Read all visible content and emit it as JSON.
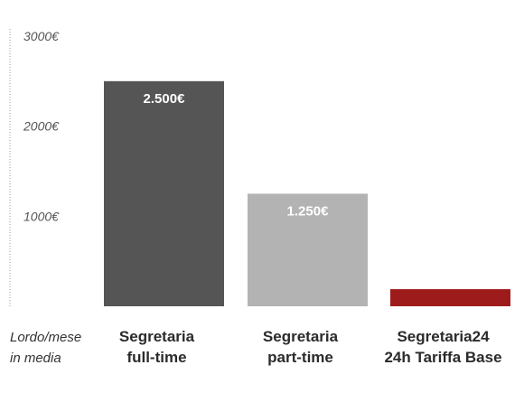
{
  "chart_data": {
    "type": "bar",
    "categories": [
      [
        "Segretaria",
        "full-time"
      ],
      [
        "Segretaria",
        "part-time"
      ],
      [
        "Segretaria24",
        "24h Tariffa Base"
      ]
    ],
    "values": [
      2500,
      1250,
      190
    ],
    "value_labels": [
      "2.500€",
      "1.250€",
      ""
    ],
    "colors": [
      "#555555",
      "#b3b3b3",
      "#9e1b1b"
    ],
    "ylim": [
      0,
      3000
    ],
    "yticks": [
      1000,
      2000,
      3000
    ],
    "ytick_labels": [
      "1000€",
      "2000€",
      "3000€"
    ],
    "ylabel": [
      "Lordo/mese",
      "in media"
    ],
    "grid": false
  }
}
